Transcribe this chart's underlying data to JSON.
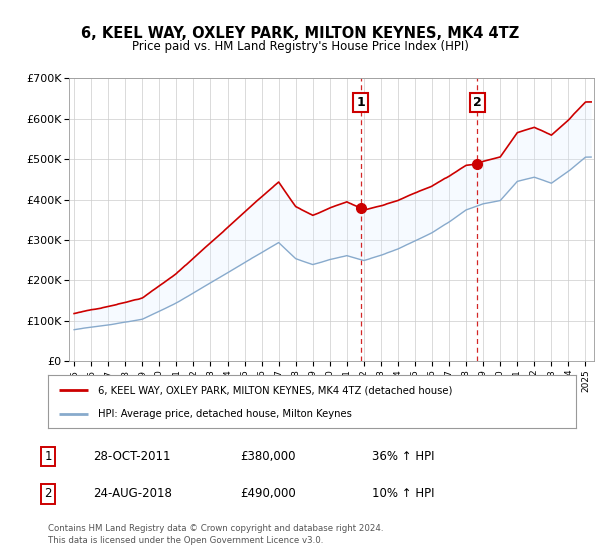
{
  "title": "6, KEEL WAY, OXLEY PARK, MILTON KEYNES, MK4 4TZ",
  "subtitle": "Price paid vs. HM Land Registry's House Price Index (HPI)",
  "red_line_label": "6, KEEL WAY, OXLEY PARK, MILTON KEYNES, MK4 4TZ (detached house)",
  "blue_line_label": "HPI: Average price, detached house, Milton Keynes",
  "sale1_date": "28-OCT-2011",
  "sale1_price": 380000,
  "sale1_label": "36% ↑ HPI",
  "sale2_date": "24-AUG-2018",
  "sale2_price": 490000,
  "sale2_label": "10% ↑ HPI",
  "vline1_x": 2011.83,
  "vline2_x": 2018.65,
  "ylim": [
    0,
    700000
  ],
  "xlim": [
    1994.7,
    2025.5
  ],
  "ylabel_ticks": [
    "£0",
    "£100K",
    "£200K",
    "£300K",
    "£400K",
    "£500K",
    "£600K",
    "£700K"
  ],
  "ytick_vals": [
    0,
    100000,
    200000,
    300000,
    400000,
    500000,
    600000,
    700000
  ],
  "footer1": "Contains HM Land Registry data © Crown copyright and database right 2024.",
  "footer2": "This data is licensed under the Open Government Licence v3.0.",
  "red_color": "#cc0000",
  "blue_color": "#88aacc",
  "fill_color": "#ddeeff",
  "background_color": "#ffffff",
  "grid_color": "#cccccc",
  "years_anchors_hpi": [
    1995,
    1997,
    1999,
    2001,
    2003,
    2005,
    2007,
    2008,
    2009,
    2010,
    2011,
    2012,
    2013,
    2014,
    2015,
    2016,
    2017,
    2018,
    2019,
    2020,
    2021,
    2022,
    2023,
    2024,
    2025
  ],
  "vals_anchors_hpi": [
    78000,
    90000,
    105000,
    145000,
    195000,
    245000,
    295000,
    255000,
    240000,
    252000,
    262000,
    250000,
    262000,
    278000,
    298000,
    318000,
    345000,
    375000,
    390000,
    398000,
    445000,
    455000,
    440000,
    470000,
    505000
  ]
}
